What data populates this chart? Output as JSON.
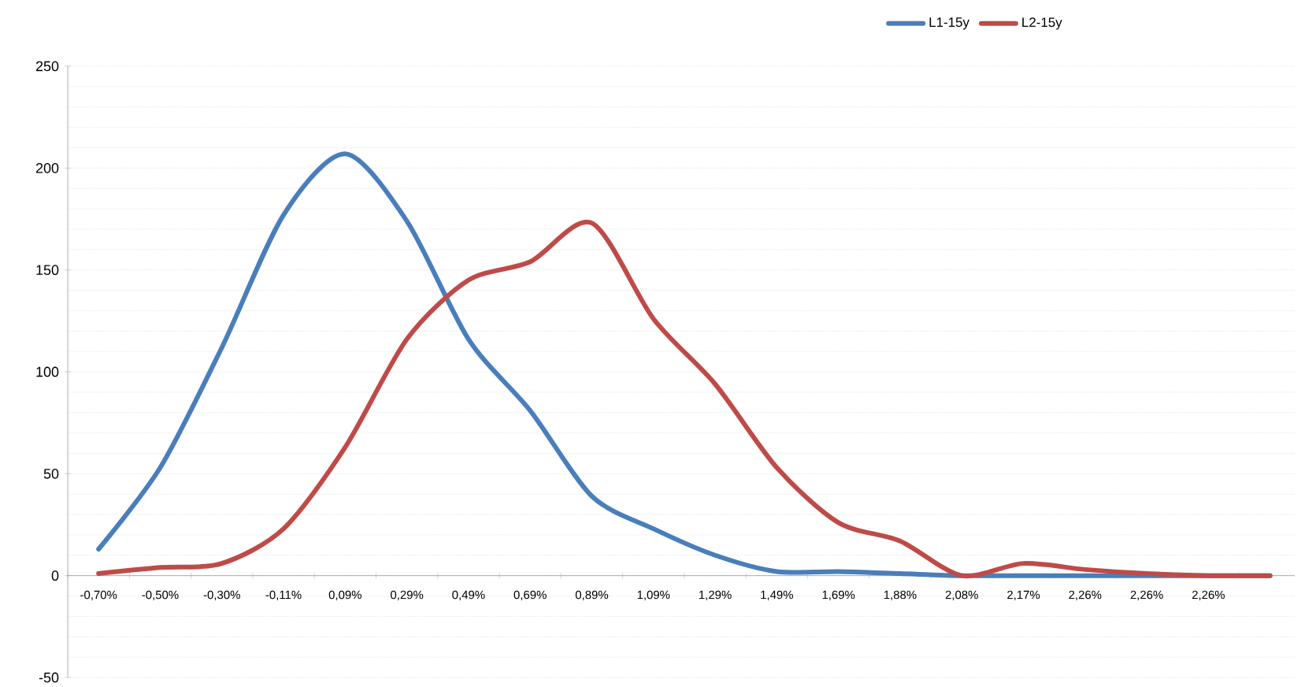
{
  "chart_data": {
    "type": "line",
    "categories": [
      "-0,70%",
      "-0,50%",
      "-0,30%",
      "-0,11%",
      "0,09%",
      "0,29%",
      "0,49%",
      "0,69%",
      "0,89%",
      "1,09%",
      "1,29%",
      "1,49%",
      "1,69%",
      "1,88%",
      "2,08%",
      "2,17%",
      "2,26%",
      "2,26%",
      "2,26%",
      null
    ],
    "series": [
      {
        "name": "L1-15y",
        "color": "#4a7ebb",
        "values": [
          13,
          53,
          112,
          177,
          207,
          174,
          116,
          81,
          39,
          23,
          10,
          2,
          2,
          1,
          0,
          0,
          0,
          0,
          0,
          0
        ]
      },
      {
        "name": "L2-15y",
        "color": "#be4b48",
        "values": [
          1,
          4,
          6,
          23,
          63,
          116,
          145,
          154,
          173,
          126,
          94,
          53,
          26,
          17,
          0,
          6,
          3,
          1,
          0,
          0
        ]
      }
    ],
    "ylim": [
      -50,
      250
    ],
    "yticks": [
      -50,
      0,
      50,
      100,
      150,
      200,
      250
    ],
    "grid": "y",
    "legend": "top right",
    "marker": "none",
    "line_style": "solid"
  }
}
